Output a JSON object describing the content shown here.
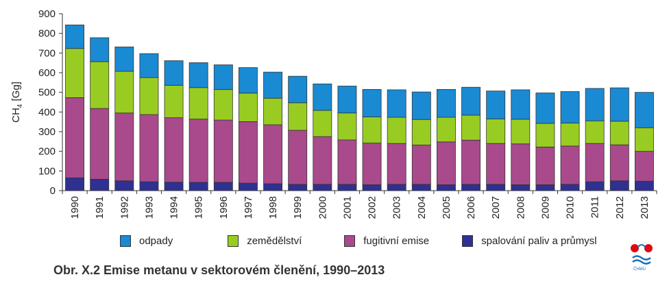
{
  "chart_data": {
    "type": "bar",
    "stacked": true,
    "ylabel": "CH4 [Gg]",
    "ylim": [
      0,
      900
    ],
    "yticks": [
      0,
      100,
      200,
      300,
      400,
      500,
      600,
      700,
      800,
      900
    ],
    "grid": false,
    "legend_position": "bottom",
    "categories": [
      "1990",
      "1991",
      "1992",
      "1993",
      "1994",
      "1995",
      "1996",
      "1997",
      "1998",
      "1999",
      "2000",
      "2001",
      "2002",
      "2003",
      "2004",
      "2005",
      "2006",
      "2007",
      "2008",
      "2009",
      "2010",
      "2011",
      "2012",
      "2013"
    ],
    "series": [
      {
        "name": "spalování paliv a průmysl",
        "color": "#2e3192",
        "values": [
          65,
          58,
          50,
          45,
          43,
          42,
          42,
          38,
          35,
          32,
          32,
          32,
          30,
          32,
          32,
          30,
          32,
          32,
          30,
          30,
          32,
          45,
          50,
          48
        ]
      },
      {
        "name": "fugitivní emise",
        "color": "#a94a8c",
        "values": [
          408,
          360,
          345,
          342,
          328,
          322,
          317,
          313,
          300,
          275,
          243,
          226,
          212,
          208,
          200,
          218,
          225,
          208,
          208,
          192,
          195,
          195,
          183,
          152
        ]
      },
      {
        "name": "zemědělství",
        "color": "#99cc22",
        "values": [
          250,
          238,
          212,
          188,
          165,
          160,
          155,
          145,
          135,
          140,
          133,
          137,
          133,
          133,
          130,
          125,
          127,
          125,
          125,
          120,
          117,
          115,
          120,
          120
        ]
      },
      {
        "name": "odpady",
        "color": "#1a8ad3",
        "values": [
          120,
          122,
          124,
          122,
          125,
          127,
          126,
          130,
          133,
          135,
          135,
          137,
          140,
          140,
          140,
          142,
          142,
          142,
          150,
          155,
          160,
          165,
          170,
          180
        ]
      }
    ],
    "legend_order": [
      "odpady",
      "zemědělství",
      "fugitivní emise",
      "spalování paliv a průmysl"
    ]
  },
  "caption": "Obr. X.2  Emise metanu v sektorovém členění, 1990–2013",
  "logo_text": "ČHMÚ"
}
